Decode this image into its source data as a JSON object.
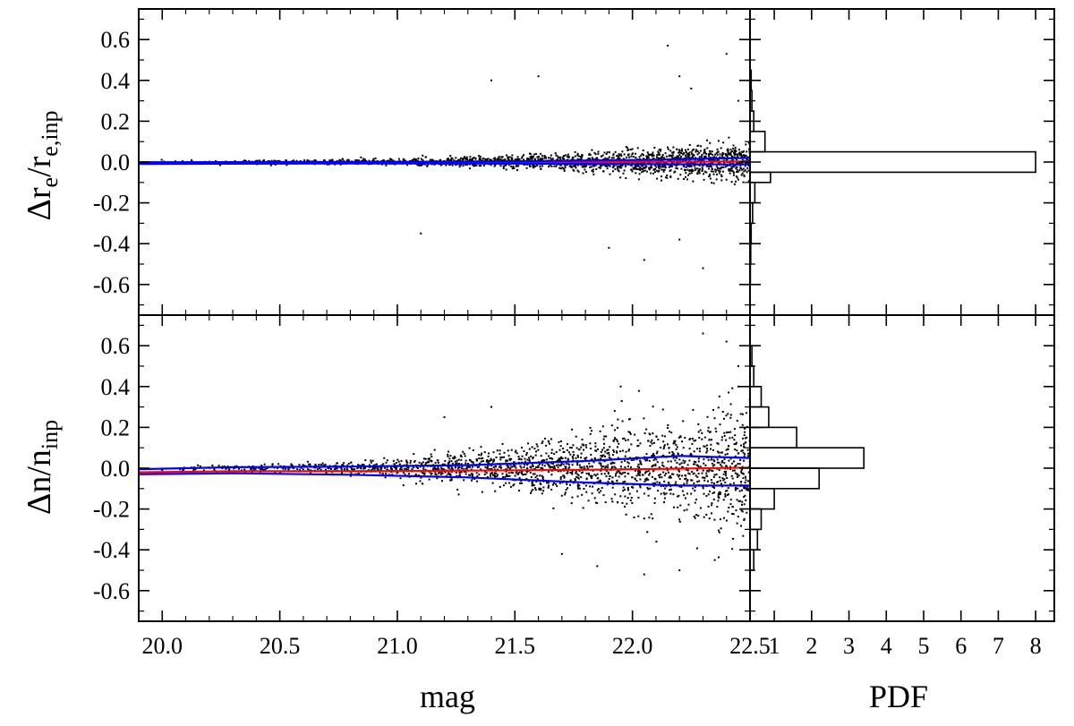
{
  "chart_data": [
    {
      "type": "scatter",
      "panel": "top-left",
      "ylabel_parts": {
        "main": "Δr",
        "sub1": "e",
        "mid": "/r",
        "sub2": "e,inp"
      },
      "xlim": [
        19.9,
        22.5
      ],
      "ylim": [
        -0.75,
        0.75
      ],
      "yticks": [
        -0.6,
        -0.4,
        -0.2,
        0.0,
        0.2,
        0.4,
        0.6
      ],
      "ytick_labels": [
        "-0.6",
        "-0.4",
        "-0.2",
        "0.0",
        "0.2",
        "0.4",
        "0.6"
      ],
      "scatter_model": {
        "n_points": 1800,
        "sigma_bright": 0.004,
        "sigma_faint": 0.045,
        "x_range": [
          19.9,
          22.5
        ]
      },
      "outliers": [
        [
          22.15,
          0.57
        ],
        [
          22.4,
          0.53
        ],
        [
          22.2,
          0.42
        ],
        [
          21.6,
          0.42
        ],
        [
          21.4,
          0.4
        ],
        [
          22.25,
          0.36
        ],
        [
          22.3,
          -0.52
        ],
        [
          22.05,
          -0.48
        ],
        [
          21.9,
          -0.42
        ],
        [
          21.1,
          -0.35
        ],
        [
          22.2,
          -0.38
        ],
        [
          22.45,
          0.3
        ]
      ],
      "curves": [
        {
          "color": "#ff0000",
          "x": [
            19.9,
            20.5,
            21.0,
            21.5,
            22.0,
            22.5
          ],
          "y": [
            -0.005,
            -0.004,
            -0.003,
            -0.001,
            0.001,
            0.003
          ]
        },
        {
          "color": "#0000ff",
          "x": [
            19.9,
            20.5,
            21.0,
            21.5,
            22.0,
            22.5
          ],
          "y": [
            -0.001,
            0.0,
            0.001,
            0.004,
            0.01,
            0.02
          ]
        },
        {
          "color": "#0000ff",
          "x": [
            19.9,
            20.5,
            21.0,
            21.5,
            22.0,
            22.5
          ],
          "y": [
            -0.009,
            -0.008,
            -0.007,
            -0.008,
            -0.01,
            -0.012
          ]
        }
      ]
    },
    {
      "type": "bar",
      "panel": "top-right",
      "orientation": "horizontal",
      "xlim": [
        0.35,
        8.5
      ],
      "ylim": [
        -0.75,
        0.75
      ],
      "bins": [
        {
          "y0": -0.6,
          "y1": -0.5,
          "value": 0.36
        },
        {
          "y0": -0.5,
          "y1": -0.4,
          "value": 0.37
        },
        {
          "y0": -0.4,
          "y1": -0.3,
          "value": 0.38
        },
        {
          "y0": -0.3,
          "y1": -0.2,
          "value": 0.42
        },
        {
          "y0": -0.2,
          "y1": -0.1,
          "value": 0.48
        },
        {
          "y0": -0.1,
          "y1": -0.05,
          "value": 0.9
        },
        {
          "y0": -0.05,
          "y1": 0.05,
          "value": 8.0
        },
        {
          "y0": 0.05,
          "y1": 0.15,
          "value": 0.75
        },
        {
          "y0": 0.15,
          "y1": 0.25,
          "value": 0.45
        },
        {
          "y0": 0.25,
          "y1": 0.35,
          "value": 0.4
        },
        {
          "y0": 0.35,
          "y1": 0.45,
          "value": 0.38
        }
      ]
    },
    {
      "type": "scatter",
      "panel": "bottom-left",
      "xlabel": "mag",
      "ylabel_parts": {
        "main": "Δn/n",
        "sub1": "inp"
      },
      "xlim": [
        19.9,
        22.5
      ],
      "ylim": [
        -0.75,
        0.75
      ],
      "xticks": [
        20.0,
        20.5,
        21.0,
        21.5,
        22.0,
        22.5
      ],
      "xtick_labels": [
        "20.0",
        "20.5",
        "21.0",
        "21.5",
        "22.0",
        "22.5"
      ],
      "yticks": [
        -0.6,
        -0.4,
        -0.2,
        0.0,
        0.2,
        0.4,
        0.6
      ],
      "ytick_labels": [
        "-0.6",
        "-0.4",
        "-0.2",
        "0.0",
        "0.2",
        "0.4",
        "0.6"
      ],
      "scatter_model": {
        "n_points": 1900,
        "sigma_bright": 0.008,
        "sigma_faint": 0.16,
        "x_range": [
          19.9,
          22.5
        ]
      },
      "outliers": [
        [
          22.3,
          0.66
        ],
        [
          22.4,
          0.62
        ],
        [
          22.45,
          0.5
        ],
        [
          22.2,
          -0.5
        ],
        [
          22.05,
          -0.52
        ],
        [
          21.85,
          -0.48
        ],
        [
          22.35,
          -0.45
        ],
        [
          21.7,
          -0.42
        ],
        [
          21.4,
          0.3
        ],
        [
          21.2,
          0.25
        ],
        [
          22.45,
          0.4
        ],
        [
          21.95,
          0.4
        ]
      ],
      "curves": [
        {
          "color": "#ff0000",
          "x": [
            19.9,
            20.3,
            20.8,
            21.3,
            21.8,
            22.2,
            22.5
          ],
          "y": [
            -0.02,
            -0.015,
            -0.015,
            -0.012,
            -0.008,
            -0.002,
            0.003
          ]
        },
        {
          "color": "#0000ff",
          "x": [
            19.9,
            20.3,
            20.8,
            21.3,
            21.8,
            22.2,
            22.5
          ],
          "y": [
            -0.005,
            0.005,
            0.008,
            0.015,
            0.035,
            0.06,
            0.05
          ]
        },
        {
          "color": "#0000ff",
          "x": [
            19.9,
            20.3,
            20.8,
            21.3,
            21.8,
            22.2,
            22.5
          ],
          "y": [
            -0.03,
            -0.025,
            -0.032,
            -0.045,
            -0.07,
            -0.085,
            -0.085
          ]
        }
      ]
    },
    {
      "type": "bar",
      "panel": "bottom-right",
      "orientation": "horizontal",
      "xlabel": "PDF",
      "xlim": [
        0.35,
        8.5
      ],
      "ylim": [
        -0.75,
        0.75
      ],
      "xticks": [
        1,
        2,
        3,
        4,
        5,
        6,
        7,
        8
      ],
      "xtick_labels": [
        "1",
        "2",
        "3",
        "4",
        "5",
        "6",
        "7",
        "8"
      ],
      "bins": [
        {
          "y0": -0.5,
          "y1": -0.4,
          "value": 0.45
        },
        {
          "y0": -0.4,
          "y1": -0.3,
          "value": 0.55
        },
        {
          "y0": -0.3,
          "y1": -0.2,
          "value": 0.65
        },
        {
          "y0": -0.2,
          "y1": -0.1,
          "value": 1.0
        },
        {
          "y0": -0.1,
          "y1": 0.0,
          "value": 2.2
        },
        {
          "y0": 0.0,
          "y1": 0.1,
          "value": 3.4
        },
        {
          "y0": 0.1,
          "y1": 0.2,
          "value": 1.6
        },
        {
          "y0": 0.2,
          "y1": 0.3,
          "value": 0.85
        },
        {
          "y0": 0.3,
          "y1": 0.4,
          "value": 0.65
        },
        {
          "y0": 0.4,
          "y1": 0.5,
          "value": 0.45
        },
        {
          "y0": 0.5,
          "y1": 0.6,
          "value": 0.4
        }
      ]
    }
  ]
}
